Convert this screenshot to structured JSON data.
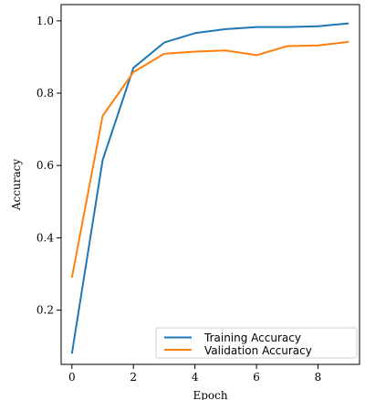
{
  "chart_data": {
    "type": "line",
    "xlabel": "Epoch",
    "ylabel": "Accuracy",
    "xlim": [
      -0.35,
      9.35
    ],
    "ylim": [
      0.05,
      1.045
    ],
    "xticks": [
      0,
      2,
      4,
      6,
      8
    ],
    "yticks": [
      0.2,
      0.4,
      0.6,
      0.8,
      1.0
    ],
    "xtick_labels": [
      "0",
      "2",
      "4",
      "6",
      "8"
    ],
    "ytick_labels": [
      "0.2",
      "0.4",
      "0.6",
      "0.8",
      "1.0"
    ],
    "grid": false,
    "legend_position": "lower-right",
    "series": [
      {
        "name": "Training Accuracy",
        "color": "#1f77b4",
        "x": [
          0,
          1,
          2,
          3,
          4,
          5,
          6,
          7,
          8,
          9
        ],
        "values": [
          0.08,
          0.615,
          0.87,
          0.94,
          0.966,
          0.977,
          0.983,
          0.983,
          0.985,
          0.993
        ]
      },
      {
        "name": "Validation Accuracy",
        "color": "#ff7f0e",
        "x": [
          0,
          1,
          2,
          3,
          4,
          5,
          6,
          7,
          8,
          9
        ],
        "values": [
          0.29,
          0.737,
          0.858,
          0.909,
          0.915,
          0.918,
          0.905,
          0.93,
          0.932,
          0.942
        ]
      }
    ]
  }
}
